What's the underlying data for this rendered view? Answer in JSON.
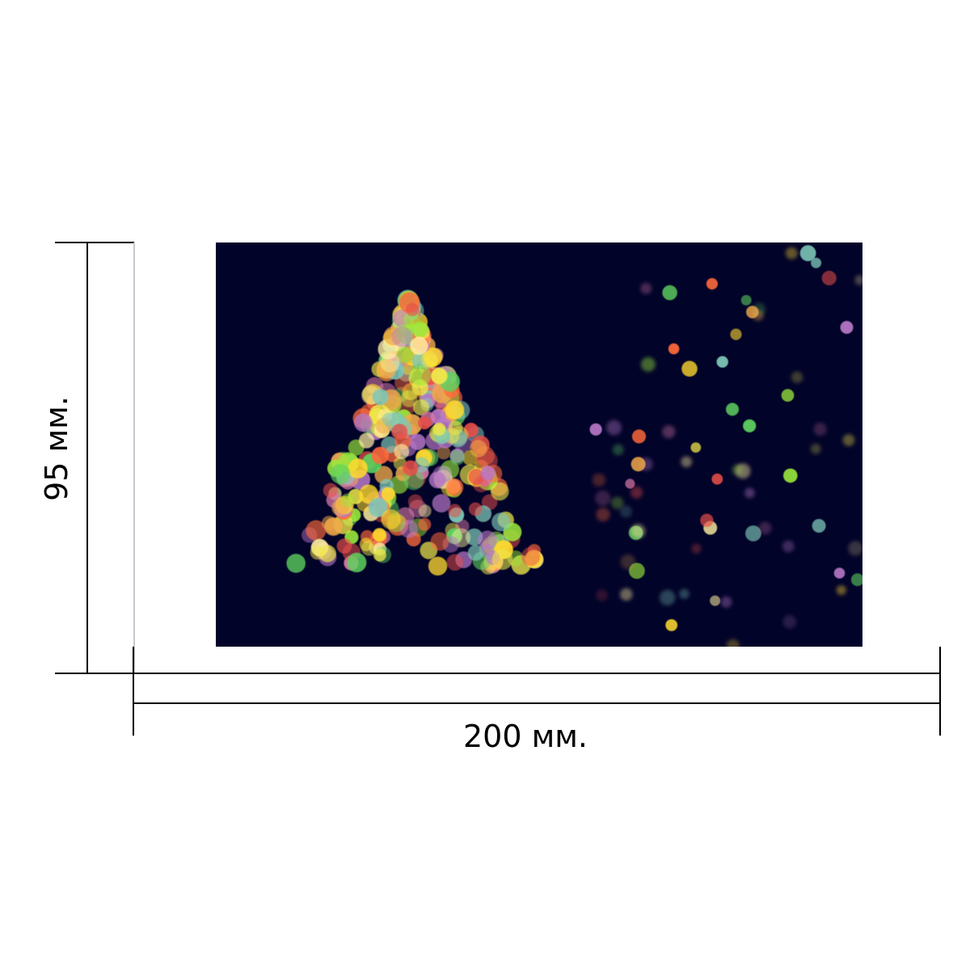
{
  "dimensions": {
    "height_label": "95 мм.",
    "width_label": "200 мм."
  },
  "colors": {
    "background": "#020329",
    "line": "#000000",
    "lights": [
      "#ffd92e",
      "#f0e84a",
      "#9ae83a",
      "#5fd35f",
      "#ff6a3a",
      "#e8504a",
      "#d878a8",
      "#b878c8",
      "#7ec8b8",
      "#fff0a0",
      "#f0a848"
    ]
  }
}
